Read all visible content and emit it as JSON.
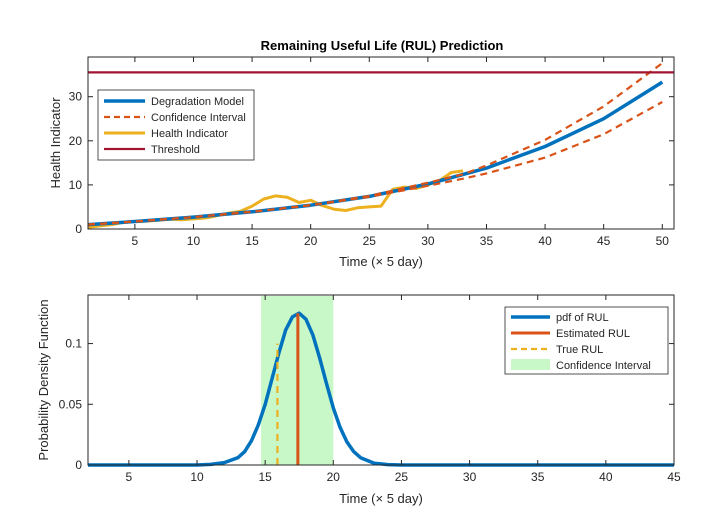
{
  "chart_data": [
    {
      "type": "line",
      "title": "Remaining Useful Life (RUL) Prediction",
      "xlabel": "Time (× 5 day)",
      "ylabel": "Health Indicator",
      "xlim": [
        1,
        51
      ],
      "ylim": [
        0,
        39
      ],
      "xticks": [
        5,
        10,
        15,
        20,
        25,
        30,
        35,
        40,
        45,
        50
      ],
      "yticks": [
        0,
        10,
        20,
        30
      ],
      "grid": false,
      "legend_position": "top-left",
      "series": [
        {
          "name": "Degradation Model",
          "color": "#0072BD",
          "style": "solid",
          "x": [
            1,
            5,
            10,
            15,
            20,
            25,
            30,
            35,
            40,
            45,
            50
          ],
          "y": [
            1.0,
            1.7,
            2.7,
            3.9,
            5.4,
            7.4,
            10.2,
            13.8,
            18.7,
            25.0,
            33.3
          ]
        },
        {
          "name": "Confidence Interval",
          "color": "#D95319",
          "style": "dashed",
          "x": [
            1,
            5,
            10,
            15,
            20,
            25,
            30,
            33,
            35,
            40,
            45,
            50
          ],
          "y": [
            1.0,
            1.7,
            2.7,
            3.9,
            5.4,
            7.5,
            10.5,
            12.4,
            14.4,
            20.2,
            27.8,
            37.6
          ]
        },
        {
          "name": "",
          "color": "#D95319",
          "style": "dashed",
          "x": [
            1,
            5,
            10,
            15,
            20,
            25,
            30,
            33,
            35,
            40,
            45,
            50
          ],
          "y": [
            1.0,
            1.7,
            2.7,
            3.9,
            5.4,
            7.3,
            9.8,
            11.4,
            12.6,
            16.2,
            21.5,
            28.8
          ]
        },
        {
          "name": "Health Indicator",
          "color": "#EDB120",
          "style": "solid",
          "x": [
            1,
            2,
            3,
            4,
            5,
            6,
            7,
            8,
            9,
            10,
            11,
            12,
            13,
            14,
            15,
            16,
            17,
            18,
            19,
            20,
            21,
            22,
            23,
            24,
            25,
            26,
            27,
            28,
            29,
            30,
            31,
            32,
            33
          ],
          "y": [
            0.4,
            0.7,
            1.0,
            1.5,
            1.7,
            1.8,
            2.0,
            2.2,
            2.1,
            2.3,
            2.5,
            3.0,
            3.6,
            4.0,
            5.2,
            6.8,
            7.5,
            7.2,
            6.0,
            6.5,
            5.3,
            4.5,
            4.2,
            4.8,
            5.0,
            5.2,
            9.0,
            9.5,
            9.2,
            10.0,
            11.0,
            12.8,
            13.2
          ]
        },
        {
          "name": "Threshold",
          "color": "#A2142F",
          "style": "solid",
          "x": [
            1,
            51
          ],
          "y": [
            35.5,
            35.5
          ]
        }
      ]
    },
    {
      "type": "line",
      "title": "",
      "xlabel": "Time (× 5 day)",
      "ylabel": "Probability Density Function",
      "xlim": [
        2,
        45
      ],
      "ylim": [
        0,
        0.14
      ],
      "xticks": [
        5,
        10,
        15,
        20,
        25,
        30,
        35,
        40,
        45
      ],
      "yticks": [
        0,
        0.05,
        0.1
      ],
      "grid": false,
      "legend_position": "top-right",
      "series": [
        {
          "name": "pdf of RUL",
          "color": "#0072BD",
          "style": "solid",
          "x": [
            2,
            10,
            11,
            12,
            13,
            13.5,
            14,
            14.5,
            15,
            15.5,
            16,
            16.5,
            17,
            17.5,
            18,
            18.5,
            19,
            19.5,
            20,
            20.5,
            21,
            21.5,
            22,
            23,
            24,
            25,
            45
          ],
          "y": [
            0,
            0,
            0.0005,
            0.002,
            0.006,
            0.011,
            0.02,
            0.033,
            0.05,
            0.071,
            0.092,
            0.111,
            0.122,
            0.125,
            0.12,
            0.107,
            0.088,
            0.067,
            0.047,
            0.031,
            0.019,
            0.011,
            0.006,
            0.0015,
            0.0003,
            0,
            0
          ]
        },
        {
          "name": "Estimated RUL",
          "color": "#D95319",
          "style": "solid",
          "x": [
            17.4,
            17.4
          ],
          "y": [
            0,
            0.125
          ]
        },
        {
          "name": "True RUL",
          "color": "#EDB120",
          "style": "dashed",
          "x": [
            15.9,
            15.9
          ],
          "y": [
            0,
            0.1
          ]
        },
        {
          "name": "Confidence Interval",
          "color": "#C8F7C8",
          "style": "area",
          "x_range": [
            14.7,
            20
          ]
        }
      ]
    }
  ]
}
